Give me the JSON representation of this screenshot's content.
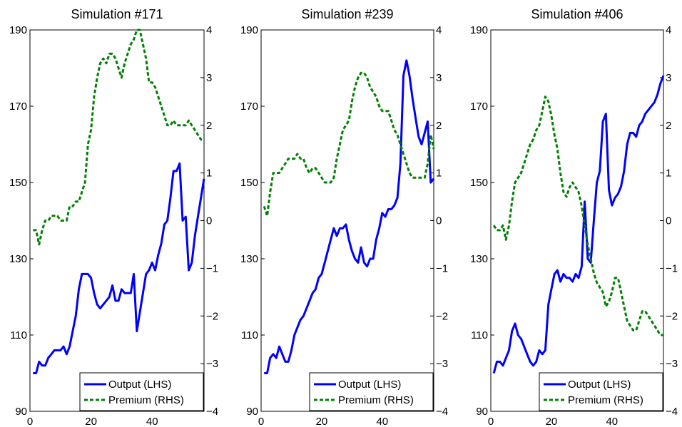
{
  "chart_data": [
    {
      "type": "line",
      "title": "Simulation #171",
      "xlim": [
        0,
        57
      ],
      "ylim_left": [
        90,
        190
      ],
      "ylim_right": [
        -4,
        4
      ],
      "xticks": [
        "0",
        "20",
        "40"
      ],
      "yticks_left": [
        "90",
        "110",
        "130",
        "150",
        "170",
        "190"
      ],
      "yticks_right": [
        "−4",
        "−3",
        "−2",
        "−1",
        "0",
        "1",
        "2",
        "3",
        "4"
      ],
      "grid": false,
      "legend_position": "bottom-right",
      "series": [
        {
          "name": "Output (LHS)",
          "axis": "left",
          "color": "#0000ff",
          "style": "solid",
          "x": [
            1,
            2,
            3,
            4,
            5,
            6,
            7,
            8,
            9,
            10,
            11,
            12,
            13,
            14,
            15,
            16,
            17,
            18,
            19,
            20,
            21,
            22,
            23,
            24,
            25,
            26,
            27,
            28,
            29,
            30,
            31,
            32,
            33,
            34,
            35,
            36,
            37,
            38,
            39,
            40,
            41,
            42,
            43,
            44,
            45,
            46,
            47,
            48,
            49,
            50,
            51,
            52,
            53,
            54,
            55,
            56,
            57
          ],
          "y": [
            100,
            100,
            103,
            102,
            102,
            104,
            105,
            106,
            106,
            106,
            107,
            105,
            107,
            111,
            115,
            122,
            126,
            126,
            126,
            125,
            121,
            118,
            117,
            118,
            119,
            120,
            123,
            119,
            119,
            122,
            121,
            121,
            121,
            126,
            111,
            116,
            121,
            126,
            127,
            129,
            127,
            131,
            134,
            139,
            140,
            146,
            153,
            153,
            155,
            140,
            141,
            127,
            129,
            136,
            141,
            146,
            151
          ]
        },
        {
          "name": "Premium (RHS)",
          "axis": "right",
          "color": "#008000",
          "style": "dotted",
          "x": [
            1,
            2,
            3,
            4,
            5,
            6,
            7,
            8,
            9,
            10,
            11,
            12,
            13,
            14,
            15,
            16,
            17,
            18,
            19,
            20,
            21,
            22,
            23,
            24,
            25,
            26,
            27,
            28,
            29,
            30,
            31,
            32,
            33,
            34,
            35,
            36,
            37,
            38,
            39,
            40,
            41,
            42,
            43,
            44,
            45,
            46,
            47,
            48,
            49,
            50,
            51,
            52,
            53,
            54,
            55,
            56,
            57
          ],
          "y": [
            -0.2,
            -0.2,
            -0.5,
            -0.2,
            0.0,
            0.0,
            0.1,
            0.1,
            0.1,
            0.0,
            0.0,
            0.0,
            0.3,
            0.3,
            0.4,
            0.4,
            0.6,
            0.8,
            1.6,
            1.9,
            2.6,
            3.0,
            3.3,
            3.4,
            3.3,
            3.5,
            3.5,
            3.4,
            3.2,
            3.0,
            3.3,
            3.5,
            3.7,
            3.8,
            4.0,
            4.0,
            3.7,
            3.4,
            2.9,
            2.9,
            2.8,
            2.6,
            2.4,
            2.2,
            2.0,
            2.0,
            2.1,
            2.0,
            2.0,
            2.0,
            2.0,
            2.1,
            2.0,
            1.9,
            1.8,
            1.7,
            1.7
          ]
        }
      ]
    },
    {
      "type": "line",
      "title": "Simulation #239",
      "xlim": [
        0,
        57
      ],
      "ylim_left": [
        90,
        190
      ],
      "ylim_right": [
        -4,
        4
      ],
      "xticks": [
        "0",
        "20",
        "40"
      ],
      "yticks_left": [
        "90",
        "110",
        "130",
        "150",
        "170",
        "190"
      ],
      "yticks_right": [
        "−4",
        "−3",
        "−2",
        "−1",
        "0",
        "1",
        "2",
        "3",
        "4"
      ],
      "grid": false,
      "legend_position": "bottom-right",
      "series": [
        {
          "name": "Output (LHS)",
          "axis": "left",
          "color": "#0000ff",
          "style": "solid",
          "x": [
            1,
            2,
            3,
            4,
            5,
            6,
            7,
            8,
            9,
            10,
            11,
            12,
            13,
            14,
            15,
            16,
            17,
            18,
            19,
            20,
            21,
            22,
            23,
            24,
            25,
            26,
            27,
            28,
            29,
            30,
            31,
            32,
            33,
            34,
            35,
            36,
            37,
            38,
            39,
            40,
            41,
            42,
            43,
            44,
            45,
            46,
            47,
            48,
            49,
            50,
            51,
            52,
            53,
            54,
            55,
            56,
            57
          ],
          "y": [
            100,
            100,
            104,
            105,
            104,
            107,
            105,
            103,
            103,
            106,
            110,
            112,
            114,
            115,
            117,
            119,
            121,
            122,
            125,
            126,
            129,
            132,
            135,
            138,
            136,
            138,
            138,
            139,
            135,
            132,
            130,
            129,
            133,
            129,
            128,
            130,
            130,
            135,
            138,
            142,
            141,
            143,
            143,
            144,
            146,
            155,
            178,
            182,
            178,
            172,
            167,
            162,
            160,
            163,
            166,
            150,
            151
          ]
        },
        {
          "name": "Premium (RHS)",
          "axis": "right",
          "color": "#008000",
          "style": "dotted",
          "x": [
            1,
            2,
            3,
            4,
            5,
            6,
            7,
            8,
            9,
            10,
            11,
            12,
            13,
            14,
            15,
            16,
            17,
            18,
            19,
            20,
            21,
            22,
            23,
            24,
            25,
            26,
            27,
            28,
            29,
            30,
            31,
            32,
            33,
            34,
            35,
            36,
            37,
            38,
            39,
            40,
            41,
            42,
            43,
            44,
            45,
            46,
            47,
            48,
            49,
            50,
            51,
            52,
            53,
            54,
            55,
            56,
            57
          ],
          "y": [
            0.3,
            0.1,
            0.6,
            1.0,
            1.0,
            1.0,
            1.1,
            1.2,
            1.3,
            1.3,
            1.3,
            1.4,
            1.3,
            1.3,
            1.1,
            1.0,
            1.1,
            1.1,
            1.0,
            0.9,
            0.8,
            0.8,
            0.8,
            0.9,
            1.3,
            1.6,
            1.9,
            2.0,
            2.1,
            2.5,
            2.8,
            3.0,
            3.1,
            3.1,
            3.0,
            2.8,
            2.7,
            2.6,
            2.4,
            2.3,
            2.3,
            2.3,
            2.1,
            1.9,
            1.8,
            1.6,
            1.4,
            1.2,
            1.0,
            0.9,
            0.9,
            0.9,
            0.9,
            0.9,
            1.2,
            1.8,
            1.5
          ]
        }
      ]
    },
    {
      "type": "line",
      "title": "Simulation #406",
      "xlim": [
        0,
        57
      ],
      "ylim_left": [
        90,
        190
      ],
      "ylim_right": [
        -4,
        4
      ],
      "xticks": [
        "0",
        "20",
        "40"
      ],
      "yticks_left": [
        "90",
        "110",
        "130",
        "150",
        "170",
        "190"
      ],
      "yticks_right": [
        "−4",
        "−3",
        "−2",
        "−1",
        "0",
        "1",
        "2",
        "3",
        "4"
      ],
      "grid": false,
      "legend_position": "bottom-right",
      "series": [
        {
          "name": "Output (LHS)",
          "axis": "left",
          "color": "#0000ff",
          "style": "solid",
          "x": [
            1,
            2,
            3,
            4,
            5,
            6,
            7,
            8,
            9,
            10,
            11,
            12,
            13,
            14,
            15,
            16,
            17,
            18,
            19,
            20,
            21,
            22,
            23,
            24,
            25,
            26,
            27,
            28,
            29,
            30,
            31,
            32,
            33,
            34,
            35,
            36,
            37,
            38,
            39,
            40,
            41,
            42,
            43,
            44,
            45,
            46,
            47,
            48,
            49,
            50,
            51,
            52,
            53,
            54,
            55,
            56,
            57
          ],
          "y": [
            100,
            103,
            103,
            102,
            104,
            106,
            111,
            113,
            110,
            109,
            107,
            105,
            103,
            102,
            103,
            106,
            105,
            106,
            118,
            122,
            126,
            127,
            124,
            126,
            125,
            125,
            124,
            126,
            125,
            128,
            145,
            130,
            129,
            140,
            150,
            153,
            166,
            168,
            148,
            144,
            146,
            147,
            149,
            153,
            160,
            163,
            163,
            162,
            165,
            166,
            168,
            169,
            170,
            171,
            173,
            176,
            178
          ]
        },
        {
          "name": "Premium (RHS)",
          "axis": "right",
          "color": "#008000",
          "style": "dotted",
          "x": [
            1,
            2,
            3,
            4,
            5,
            6,
            7,
            8,
            9,
            10,
            11,
            12,
            13,
            14,
            15,
            16,
            17,
            18,
            19,
            20,
            21,
            22,
            23,
            24,
            25,
            26,
            27,
            28,
            29,
            30,
            31,
            32,
            33,
            34,
            35,
            36,
            37,
            38,
            39,
            40,
            41,
            42,
            43,
            44,
            45,
            46,
            47,
            48,
            49,
            50,
            51,
            52,
            53,
            54,
            55,
            56,
            57
          ],
          "y": [
            -0.1,
            -0.2,
            -0.2,
            -0.1,
            -0.4,
            -0.1,
            0.4,
            0.8,
            0.9,
            1.0,
            1.2,
            1.4,
            1.6,
            1.7,
            1.9,
            2.0,
            2.3,
            2.6,
            2.5,
            2.2,
            1.8,
            1.5,
            1.0,
            0.6,
            0.5,
            0.7,
            0.8,
            0.7,
            0.6,
            0.3,
            -0.1,
            -0.5,
            -0.8,
            -1.1,
            -1.3,
            -1.4,
            -1.5,
            -1.8,
            -1.7,
            -1.5,
            -1.2,
            -1.2,
            -1.5,
            -1.8,
            -2.1,
            -2.2,
            -2.3,
            -2.3,
            -2.1,
            -1.9,
            -1.9,
            -2.0,
            -2.1,
            -2.2,
            -2.3,
            -2.4,
            -2.4
          ]
        }
      ]
    }
  ]
}
